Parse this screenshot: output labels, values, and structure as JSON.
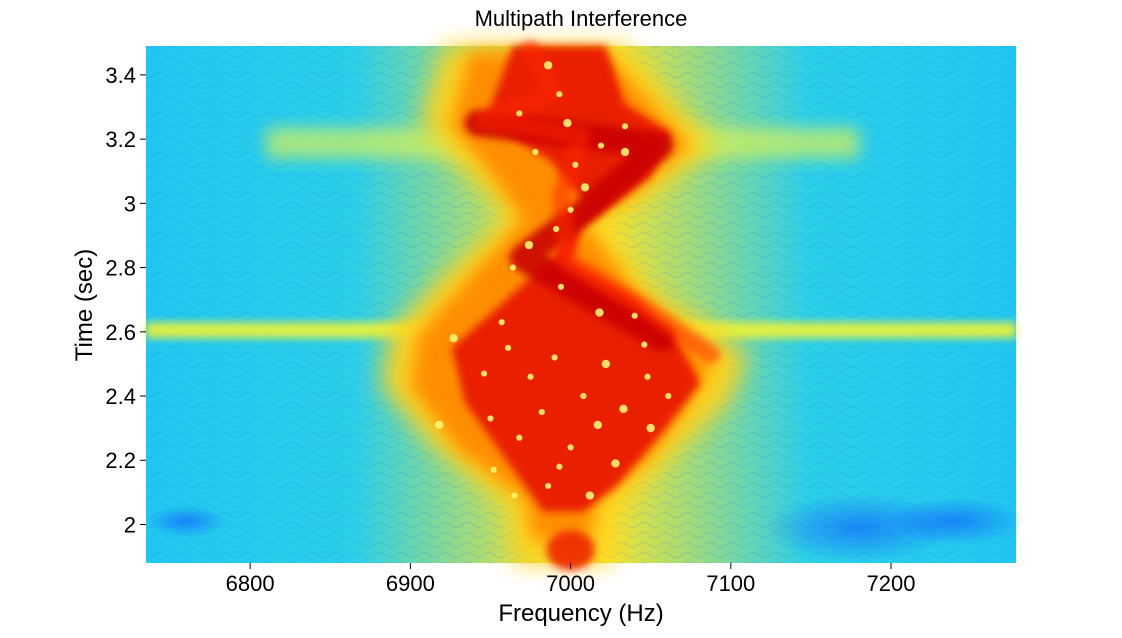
{
  "chart_data": {
    "type": "heatmap",
    "title": "Multipath Interference",
    "xlabel": "Frequency (Hz)",
    "ylabel": "Time (sec)",
    "xlim": [
      6735,
      7278
    ],
    "ylim": [
      1.88,
      3.49
    ],
    "xticks": [
      6800,
      6900,
      7000,
      7100,
      7200
    ],
    "xtick_labels": [
      "6800",
      "6900",
      "7000",
      "7100",
      "7200"
    ],
    "yticks": [
      2.0,
      2.2,
      2.4,
      2.6,
      2.8,
      3.0,
      3.2,
      3.4
    ],
    "ytick_labels": [
      "2",
      "2.2",
      "2.4",
      "2.6",
      "2.8",
      "3",
      "3.2",
      "3.4"
    ],
    "colormap": "jet",
    "grid": false,
    "legend": "none",
    "description_values": {
      "main_energy_band_center_hz": 7000,
      "horizontal_band_times_sec": [
        2.6,
        3.2
      ],
      "peak_region_times_sec": [
        2.05,
        3.49
      ]
    },
    "colors": {
      "background": "#ffffff",
      "low": "#0a4cff",
      "mid_low": "#12c8f0",
      "mid": "#a6f542",
      "mid_high": "#ffd400",
      "high": "#ff7a00",
      "peak": "#e10000"
    }
  }
}
